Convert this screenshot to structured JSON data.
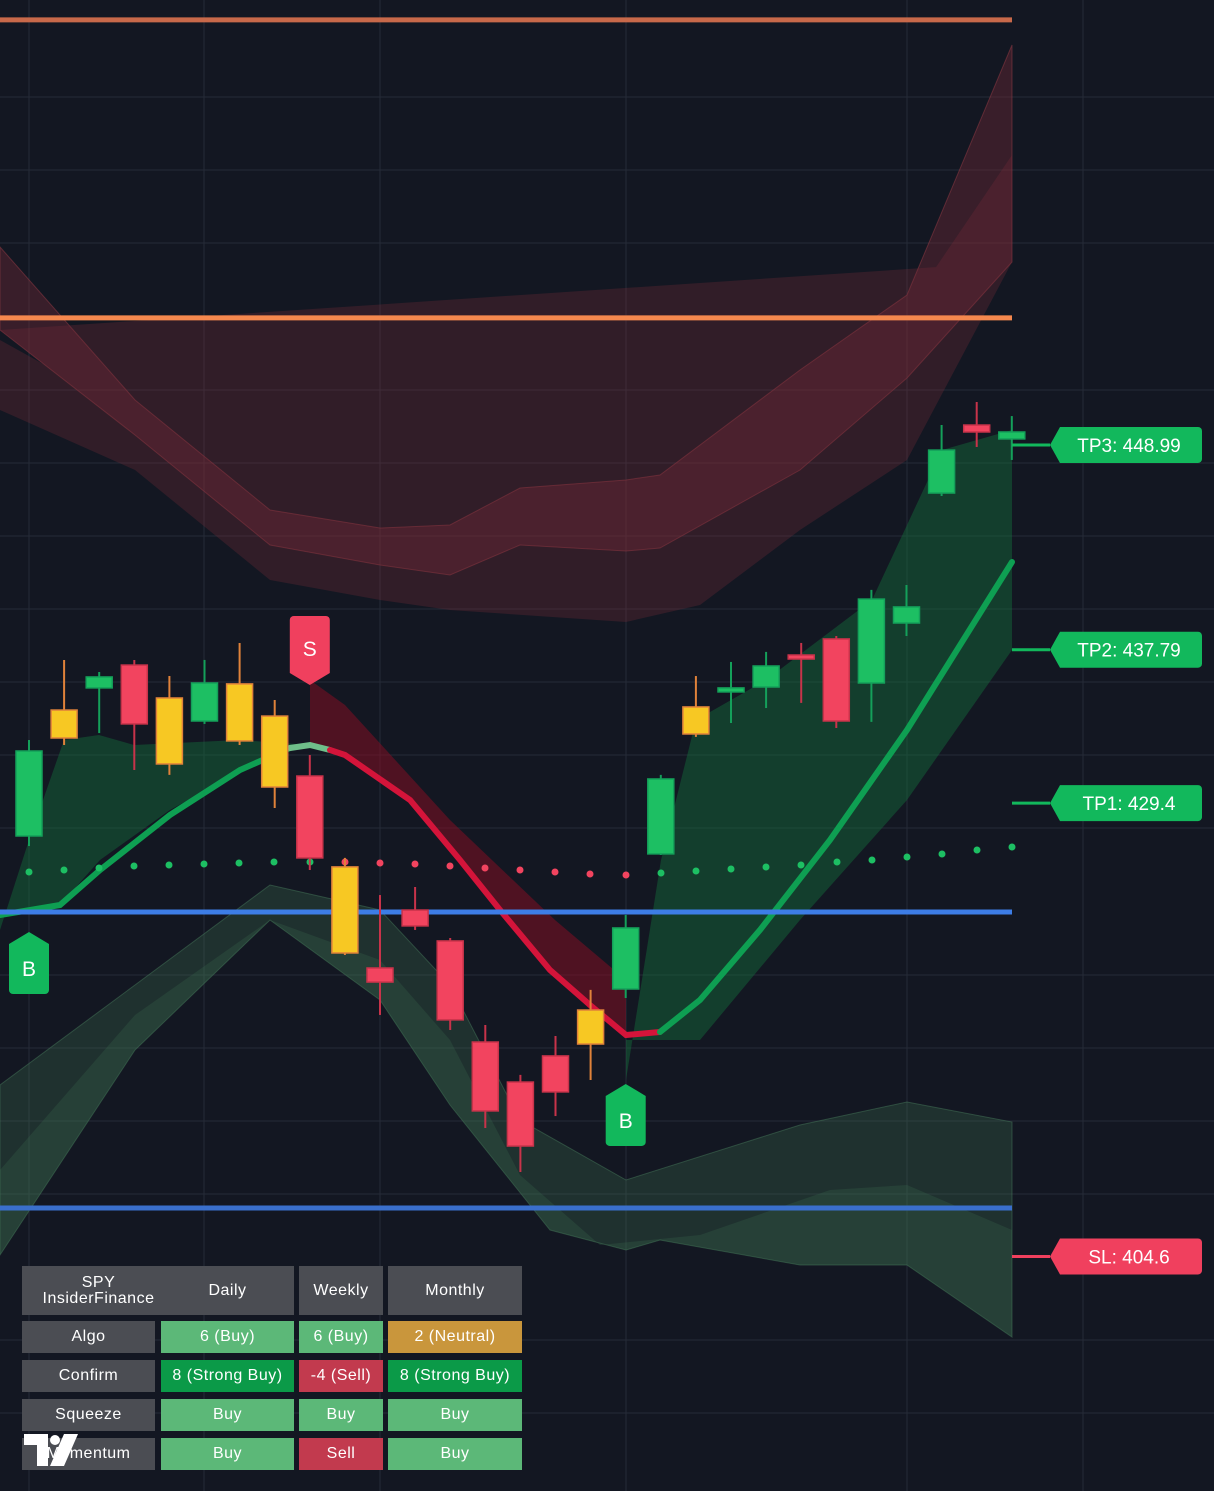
{
  "chart_data": {
    "type": "candlestick",
    "ylim": [
      391.77,
      473.33
    ],
    "candle_colors": {
      "green": [
        "#1dbf63",
        "#14a05a"
      ],
      "red": [
        "#f2445f",
        "#c8334a"
      ],
      "yellow": [
        "#f7c823",
        "#e0823a"
      ]
    },
    "candles": [
      {
        "open": 427.6,
        "high": 432.85,
        "low": 427.05,
        "close": 432.25,
        "color": "green"
      },
      {
        "open": 432.96,
        "high": 437.23,
        "low": 432.58,
        "close": 434.49,
        "color": "yellow"
      },
      {
        "open": 435.7,
        "high": 436.57,
        "low": 433.23,
        "close": 436.3,
        "color": "green"
      },
      {
        "open": 436.95,
        "high": 437.23,
        "low": 431.21,
        "close": 433.73,
        "color": "red"
      },
      {
        "open": 435.15,
        "high": 436.35,
        "low": 430.94,
        "close": 431.54,
        "color": "yellow"
      },
      {
        "open": 433.89,
        "high": 437.23,
        "low": 433.73,
        "close": 435.97,
        "color": "green"
      },
      {
        "open": 432.8,
        "high": 438.16,
        "low": 432.58,
        "close": 435.92,
        "color": "yellow"
      },
      {
        "open": 434.16,
        "high": 435.04,
        "low": 429.13,
        "close": 430.28,
        "color": "yellow"
      },
      {
        "open": 430.88,
        "high": 432.03,
        "low": 425.74,
        "close": 426.4,
        "color": "red"
      },
      {
        "open": 425.91,
        "high": 426.4,
        "low": 421.09,
        "close": 421.2,
        "color": "yellow"
      },
      {
        "open": 420.38,
        "high": 424.37,
        "low": 417.81,
        "close": 419.61,
        "color": "red"
      },
      {
        "open": 423.55,
        "high": 424.81,
        "low": 422.46,
        "close": 422.68,
        "color": "red"
      },
      {
        "open": 421.86,
        "high": 422.02,
        "low": 416.99,
        "close": 417.54,
        "color": "red"
      },
      {
        "open": 416.33,
        "high": 417.26,
        "low": 411.63,
        "close": 412.56,
        "color": "red"
      },
      {
        "open": 414.14,
        "high": 414.53,
        "low": 409.22,
        "close": 410.64,
        "color": "red"
      },
      {
        "open": 415.57,
        "high": 416.66,
        "low": 412.28,
        "close": 413.6,
        "color": "red"
      },
      {
        "open": 416.22,
        "high": 419.18,
        "low": 414.25,
        "close": 418.08,
        "color": "yellow"
      },
      {
        "open": 419.23,
        "high": 423.28,
        "low": 418.74,
        "close": 422.57,
        "color": "green"
      },
      {
        "open": 426.62,
        "high": 430.94,
        "low": 426.56,
        "close": 430.72,
        "color": "green"
      },
      {
        "open": 433.18,
        "high": 436.35,
        "low": 433.02,
        "close": 434.66,
        "color": "yellow"
      },
      {
        "open": 435.48,
        "high": 437.12,
        "low": 433.78,
        "close": 435.7,
        "color": "green"
      },
      {
        "open": 435.75,
        "high": 437.67,
        "low": 434.6,
        "close": 436.9,
        "color": "green"
      },
      {
        "open": 437.5,
        "high": 438.16,
        "low": 434.88,
        "close": 437.28,
        "color": "red"
      },
      {
        "open": 438.38,
        "high": 438.54,
        "low": 433.51,
        "close": 433.89,
        "color": "red"
      },
      {
        "open": 435.97,
        "high": 441.06,
        "low": 433.84,
        "close": 440.56,
        "color": "green"
      },
      {
        "open": 439.25,
        "high": 441.33,
        "low": 438.54,
        "close": 440.13,
        "color": "green"
      },
      {
        "open": 446.36,
        "high": 450.08,
        "low": 446.2,
        "close": 448.71,
        "color": "green"
      },
      {
        "open": 450.08,
        "high": 451.34,
        "low": 448.88,
        "close": 449.7,
        "color": "red"
      },
      {
        "open": 449.32,
        "high": 450.57,
        "low": 448.17,
        "close": 449.7,
        "color": "green"
      }
    ],
    "levels": [
      {
        "value": 472.24,
        "color": "#c8694a"
      },
      {
        "value": 455.94,
        "color": "#f5884e"
      },
      {
        "value": 423.44,
        "color": "#3d7de6"
      },
      {
        "value": 407.25,
        "color": "#3a6fcc"
      }
    ],
    "targets": [
      {
        "label": "TP3: 448.99",
        "value": 448.99,
        "color": "#12b85c"
      },
      {
        "label": "TP2: 437.79",
        "value": 437.79,
        "color": "#12b85c"
      },
      {
        "label": "TP1: 429.4",
        "value": 429.4,
        "color": "#12b85c"
      },
      {
        "label": "SL: 404.6",
        "value": 404.6,
        "color": "#f0405e"
      }
    ],
    "signals": [
      {
        "label": "B",
        "candle": 0,
        "color": "#12b85c"
      },
      {
        "label": "S",
        "candle": 8,
        "color": "#f0405e"
      },
      {
        "label": "B",
        "candle": 17,
        "color": "#12b85c"
      }
    ]
  },
  "table": {
    "header": [
      "SPY InsiderFinance",
      "Daily",
      "Weekly",
      "Monthly"
    ],
    "rows": [
      [
        "Algo",
        "6 (Buy)",
        "6 (Buy)",
        "2 (Neutral)"
      ],
      [
        "Confirm",
        "8 (Strong Buy)",
        "-4 (Sell)",
        "8 (Strong Buy)"
      ],
      [
        "Squeeze",
        "Buy",
        "Buy",
        "Buy"
      ],
      [
        "Momentum",
        "Buy",
        "Sell",
        "Buy"
      ]
    ],
    "colors": [
      [
        "#5cb878",
        "#5cb878",
        "#c9963c"
      ],
      [
        "#0b9a48",
        "#c23a4e",
        "#0b9a48"
      ],
      [
        "#5cb878",
        "#5cb878",
        "#5cb878"
      ],
      [
        "#5cb878",
        "#c23a4e",
        "#5cb878"
      ]
    ]
  }
}
